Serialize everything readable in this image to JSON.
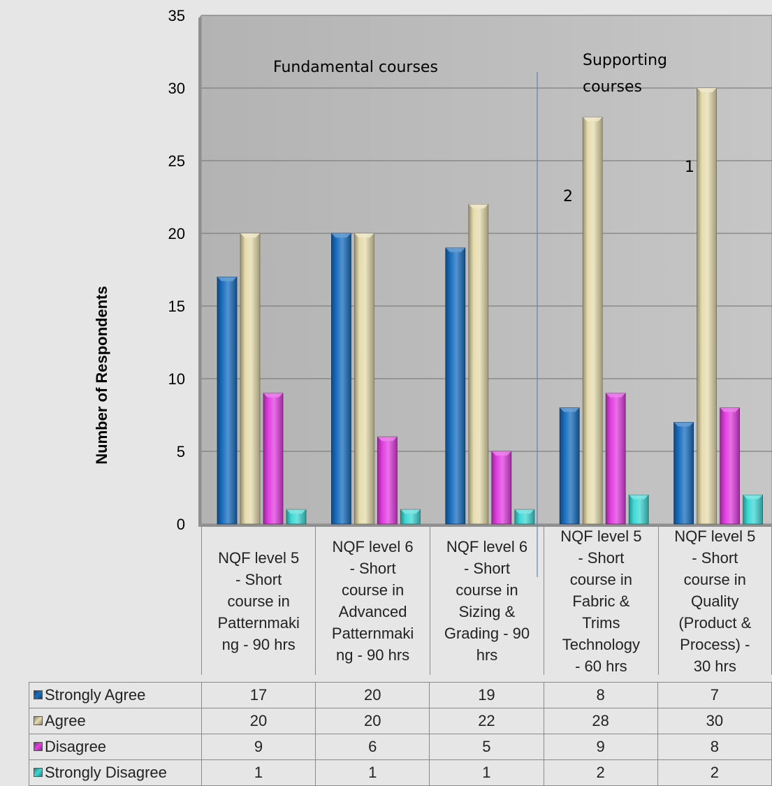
{
  "chart_data": {
    "type": "bar",
    "categories": [
      "NQF level 5\n- Short\ncourse in\nPatternmaki\nng - 90 hrs",
      "NQF level 6\n- Short\ncourse in\nAdvanced\nPatternmaki\nng - 90 hrs",
      "NQF level 6\n- Short\ncourse in\nSizing &\nGrading - 90\nhrs",
      "NQF level 5\n- Short\ncourse in\nFabric &\nTrims\nTechnology\n- 60 hrs",
      "NQF level 5\n- Short\ncourse in\nQuality\n(Product &\nProcess) -\n30 hrs"
    ],
    "series": [
      {
        "name": "Strongly Agree",
        "values": [
          17,
          20,
          19,
          8,
          7
        ],
        "color": "#1a6fc0"
      },
      {
        "name": "Agree",
        "values": [
          20,
          20,
          22,
          28,
          30
        ],
        "color": "#e6dcae"
      },
      {
        "name": "Disagree",
        "values": [
          9,
          6,
          5,
          9,
          8
        ],
        "color": "#e23fe0"
      },
      {
        "name": "Strongly Disagree",
        "values": [
          1,
          1,
          1,
          2,
          2
        ],
        "color": "#3fd9d6"
      }
    ],
    "ylabel": "Number of Respondents",
    "xlabel": "",
    "ylim": [
      0,
      35
    ],
    "yticks": [
      0,
      5,
      10,
      15,
      20,
      25,
      30,
      35
    ],
    "grid": true,
    "legend": "data-table",
    "annotations": {
      "fundamental": "Fundamental courses",
      "supporting_line1": "Supporting",
      "supporting_line2": "courses",
      "marker_2": "2",
      "marker_1": "1"
    }
  }
}
